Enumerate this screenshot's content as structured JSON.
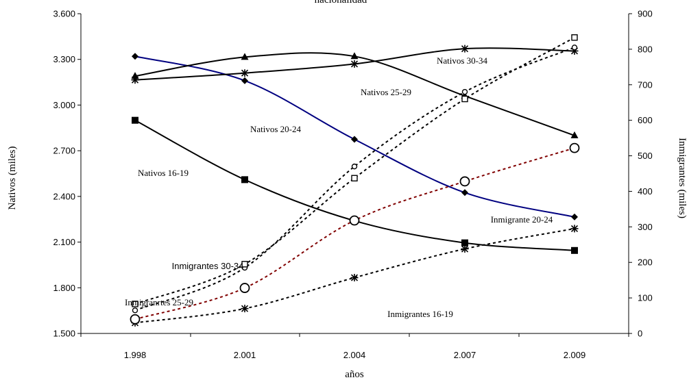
{
  "chart_data": {
    "type": "line",
    "title": "nacionalidad",
    "x": [
      "1.998",
      "2.001",
      "2.004",
      "2.007",
      "2.009"
    ],
    "xlabel": "años",
    "ylabel_left": "Nativos (miles)",
    "ylabel_right": "Inmigrantes (miles)",
    "ylim_left": [
      1500,
      3600
    ],
    "ylim_right": [
      0,
      900
    ],
    "yticks_left": [
      "1.500",
      "1.800",
      "2.100",
      "2.400",
      "2.700",
      "3.000",
      "3.300",
      "3.600"
    ],
    "yticks_right": [
      "0",
      "100",
      "200",
      "300",
      "400",
      "500",
      "600",
      "700",
      "800",
      "900"
    ],
    "grid": false,
    "legend": "none",
    "series": [
      {
        "name": "Nativos 16-19",
        "axis": "left",
        "color": "#000000",
        "dash": "solid",
        "marker": "square",
        "values": [
          2900,
          2510,
          2240,
          2095,
          2045
        ]
      },
      {
        "name": "Nativos 20-24",
        "axis": "left",
        "color": "#000080",
        "dash": "solid",
        "marker": "diamond",
        "values": [
          3320,
          3160,
          2775,
          2425,
          2265
        ]
      },
      {
        "name": "Nativos 25-29",
        "axis": "left",
        "color": "#000000",
        "dash": "solid",
        "marker": "triangle",
        "values": [
          3190,
          3315,
          3320,
          3060,
          2800
        ]
      },
      {
        "name": "Nativos 30-34",
        "axis": "left",
        "color": "#000000",
        "dash": "solid",
        "marker": "star",
        "values": [
          3165,
          3210,
          3270,
          3370,
          3355
        ]
      },
      {
        "name": "Inmigrantes 16-19",
        "axis": "right",
        "color": "#000000",
        "dash": "dashed",
        "marker": "star",
        "values": [
          30,
          70,
          157,
          238,
          295
        ]
      },
      {
        "name": "Inmigrante 20-24",
        "axis": "right",
        "color": "#800000",
        "dash": "dashed",
        "marker": "circle",
        "values": [
          40,
          128,
          318,
          428,
          522
        ]
      },
      {
        "name": "Inmigranrtes 25-29",
        "axis": "right",
        "color": "#000000",
        "dash": "dashed",
        "marker": "circle-small",
        "values": [
          65,
          185,
          470,
          680,
          805
        ]
      },
      {
        "name": "Inmigrantes 30-34",
        "axis": "right",
        "color": "#000000",
        "dash": "dashed",
        "marker": "square-open",
        "values": [
          83,
          195,
          437,
          660,
          833
        ]
      }
    ],
    "annotations": [
      {
        "text": "Nativos 30-34",
        "font": "serif"
      },
      {
        "text": "Nativos 25-29",
        "font": "serif"
      },
      {
        "text": "Nativos 20-24",
        "font": "serif"
      },
      {
        "text": "Nativos 16-19",
        "font": "serif"
      },
      {
        "text": "Inmigrante 20-24",
        "font": "serif"
      },
      {
        "text": "Inmigrantes 30-34",
        "font": "sans"
      },
      {
        "text": "Inmigranrtes 25-29",
        "font": "serif"
      },
      {
        "text": "Inmigrantes 16-19",
        "font": "serif"
      }
    ]
  }
}
